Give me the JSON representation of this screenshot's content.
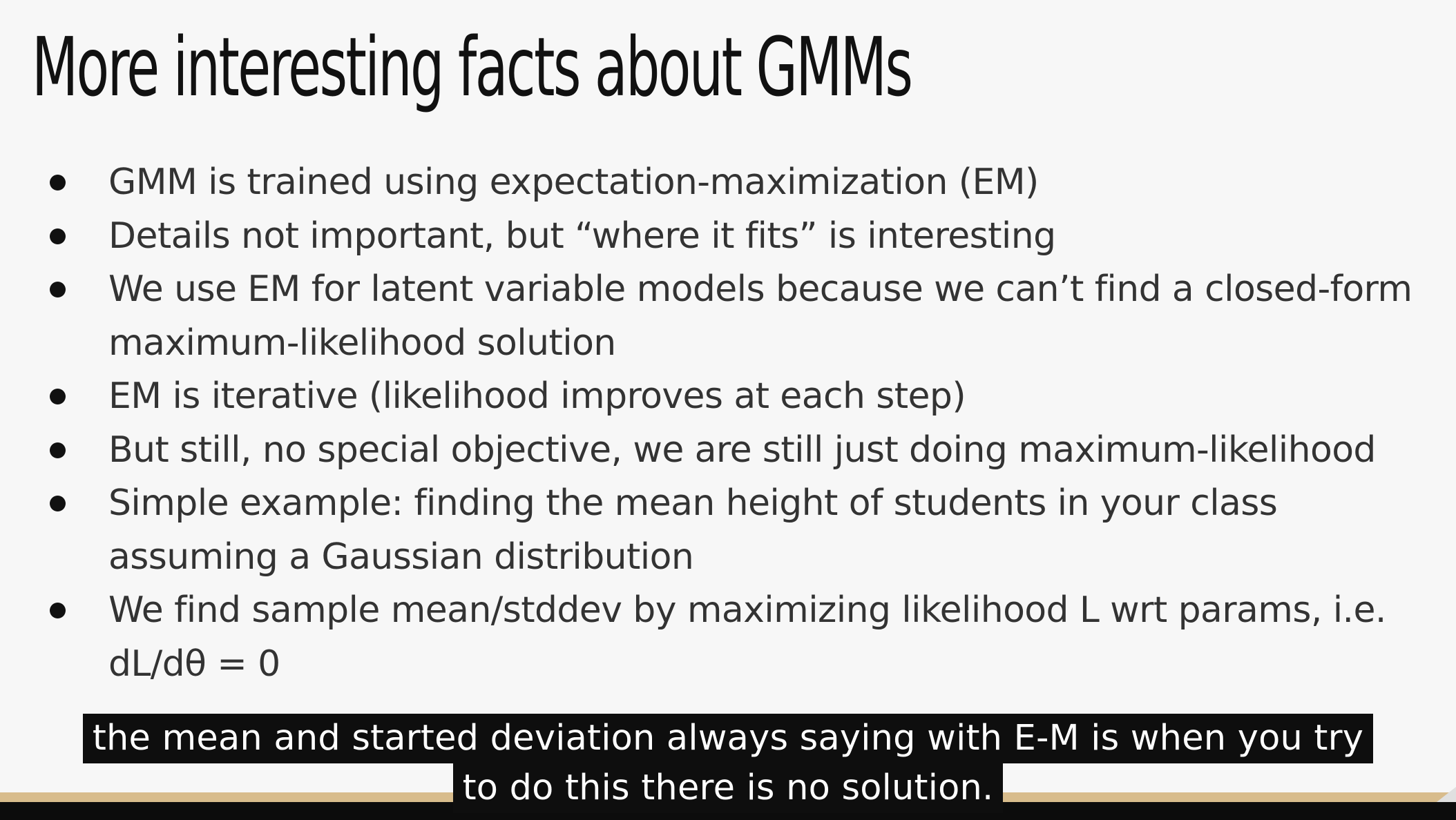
{
  "slide": {
    "title": "More interesting facts about GMMs",
    "bullets": [
      "GMM is trained using expectation-maximization (EM)",
      "Details not important, but “where it fits” is interesting",
      "We use EM for latent variable models because we can’t find a closed-form maximum-likelihood solution",
      "EM is iterative (likelihood improves at each step)",
      "But still, no special objective, we are still just doing maximum-likelihood",
      "Simple example: finding the mean height of students in your class assuming a Gaussian distribution",
      "We find sample mean/stddev by maximizing likelihood L wrt params, i.e. dL/dθ = 0"
    ]
  },
  "subtitles": {
    "line1": "the mean and started deviation always saying with E-M is when you try",
    "line2": "to do this there is no solution."
  },
  "colors": {
    "slide_background": "#f7f7f7",
    "title_text": "#111111",
    "bullet_text": "#333333",
    "caption_background": "#0e0e0e",
    "caption_text": "#ffffff",
    "bottom_bar": "#d8bc8c"
  }
}
